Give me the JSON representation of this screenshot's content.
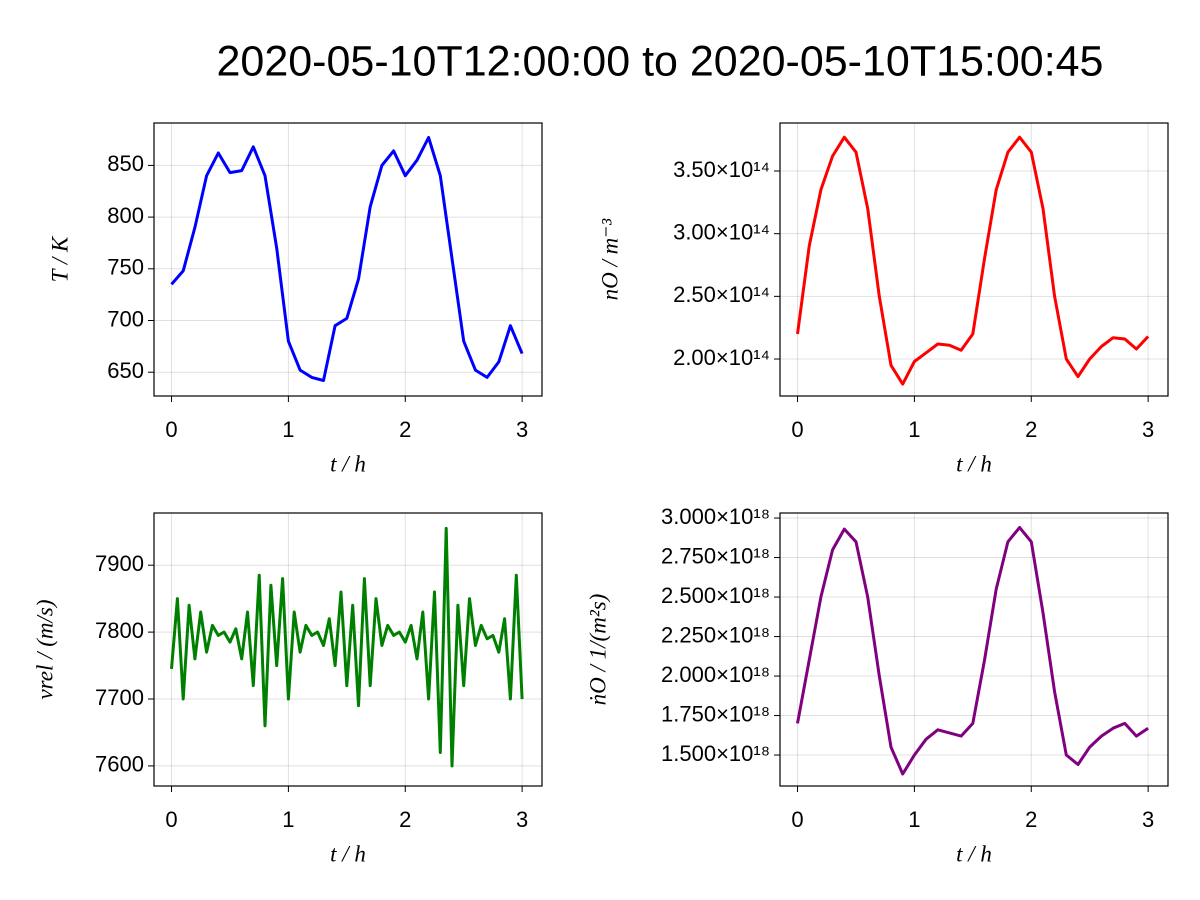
{
  "title": "2020-05-10T12:00:00 to 2020-05-10T15:00:45",
  "chart_data": [
    {
      "type": "line",
      "xlabel": "t / h",
      "ylabel": "T / K",
      "color": "#0000ff",
      "grid": true,
      "x": [
        0,
        0.1,
        0.2,
        0.3,
        0.4,
        0.5,
        0.6,
        0.7,
        0.8,
        0.9,
        1,
        1.1,
        1.2,
        1.3,
        1.4,
        1.5,
        1.6,
        1.7,
        1.8,
        1.9,
        2,
        2.1,
        2.2,
        2.3,
        2.4,
        2.5,
        2.6,
        2.7,
        2.8,
        2.9,
        3
      ],
      "values": [
        735,
        748,
        790,
        840,
        862,
        843,
        845,
        868,
        840,
        770,
        680,
        652,
        645,
        642,
        695,
        702,
        740,
        810,
        850,
        864,
        840,
        855,
        877,
        840,
        760,
        680,
        652,
        645,
        660,
        695,
        668
      ],
      "xlim": [
        -0.15,
        3.17
      ],
      "xticks": [
        0,
        1,
        2,
        3
      ],
      "ylim": [
        627,
        891
      ],
      "yticks": [
        650,
        700,
        750,
        800,
        850
      ]
    },
    {
      "type": "line",
      "xlabel": "t / h",
      "ylabel": "nO / m⁻³",
      "color": "#ff0000",
      "grid": true,
      "x": [
        0,
        0.1,
        0.2,
        0.3,
        0.4,
        0.5,
        0.6,
        0.7,
        0.8,
        0.9,
        1,
        1.1,
        1.2,
        1.3,
        1.4,
        1.5,
        1.6,
        1.7,
        1.8,
        1.9,
        2,
        2.1,
        2.2,
        2.3,
        2.4,
        2.5,
        2.6,
        2.7,
        2.8,
        2.9,
        3
      ],
      "values": [
        220000000000000.0,
        290000000000000.0,
        335000000000000.0,
        362000000000000.0,
        377000000000000.0,
        365000000000000.0,
        320000000000000.0,
        250000000000000.0,
        195000000000000.0,
        180000000000000.0,
        198000000000000.0,
        205000000000000.0,
        212000000000000.0,
        211000000000000.0,
        207000000000000.0,
        220000000000000.0,
        280000000000000.0,
        335000000000000.0,
        365000000000000.0,
        377000000000000.0,
        365000000000000.0,
        320000000000000.0,
        250000000000000.0,
        200000000000000.0,
        186000000000000.0,
        200000000000000.0,
        210000000000000.0,
        217000000000000.0,
        216000000000000.0,
        208000000000000.0,
        218000000000000.0
      ],
      "xlim": [
        -0.15,
        3.17
      ],
      "xticks": [
        0,
        1,
        2,
        3
      ],
      "ylim": [
        170500000000000.0,
        388300000000000.0
      ],
      "yticks": [
        {
          "value": 200000000000000.0,
          "label": "2.00×10¹⁴"
        },
        {
          "value": 250000000000000.0,
          "label": "2.50×10¹⁴"
        },
        {
          "value": 300000000000000.0,
          "label": "3.00×10¹⁴"
        },
        {
          "value": 350000000000000.0,
          "label": "3.50×10¹⁴"
        }
      ]
    },
    {
      "type": "line",
      "xlabel": "t / h",
      "ylabel": "vrel / (m/s)",
      "color": "#008000",
      "grid": true,
      "x": [
        0,
        0.05,
        0.1,
        0.15,
        0.2,
        0.25,
        0.3,
        0.35,
        0.4,
        0.45,
        0.5,
        0.55,
        0.6,
        0.65,
        0.7,
        0.75,
        0.8,
        0.85,
        0.9,
        0.95,
        1,
        1.05,
        1.1,
        1.15,
        1.2,
        1.25,
        1.3,
        1.35,
        1.4,
        1.45,
        1.5,
        1.55,
        1.6,
        1.65,
        1.7,
        1.75,
        1.8,
        1.85,
        1.9,
        1.95,
        2,
        2.05,
        2.1,
        2.15,
        2.2,
        2.25,
        2.3,
        2.35,
        2.4,
        2.45,
        2.5,
        2.55,
        2.6,
        2.65,
        2.7,
        2.75,
        2.8,
        2.85,
        2.9,
        2.95,
        3
      ],
      "values": [
        7745,
        7850,
        7700,
        7840,
        7760,
        7830,
        7770,
        7810,
        7795,
        7800,
        7785,
        7805,
        7760,
        7830,
        7720,
        7885,
        7660,
        7870,
        7750,
        7880,
        7700,
        7830,
        7770,
        7810,
        7795,
        7800,
        7780,
        7820,
        7750,
        7860,
        7720,
        7840,
        7690,
        7880,
        7720,
        7850,
        7780,
        7810,
        7795,
        7800,
        7785,
        7810,
        7760,
        7830,
        7700,
        7860,
        7620,
        7955,
        7600,
        7840,
        7720,
        7850,
        7780,
        7810,
        7790,
        7795,
        7770,
        7820,
        7700,
        7885,
        7700
      ],
      "xlim": [
        -0.15,
        3.17
      ],
      "xticks": [
        0,
        1,
        2,
        3
      ],
      "ylim": [
        7570,
        7978
      ],
      "yticks": [
        7600,
        7700,
        7800,
        7900
      ]
    },
    {
      "type": "line",
      "xlabel": "t / h",
      "ylabel": "ṅO / 1/(m²s)",
      "color": "#800080",
      "grid": true,
      "x": [
        0,
        0.1,
        0.2,
        0.3,
        0.4,
        0.5,
        0.6,
        0.7,
        0.8,
        0.9,
        1,
        1.1,
        1.2,
        1.3,
        1.4,
        1.5,
        1.6,
        1.7,
        1.8,
        1.9,
        2,
        2.1,
        2.2,
        2.3,
        2.4,
        2.5,
        2.6,
        2.7,
        2.8,
        2.9,
        3
      ],
      "values": [
        1.7e+18,
        2.1e+18,
        2.5e+18,
        2.8e+18,
        2.93e+18,
        2.85e+18,
        2.5e+18,
        2e+18,
        1.55e+18,
        1.38e+18,
        1.5e+18,
        1.6e+18,
        1.66e+18,
        1.64e+18,
        1.62e+18,
        1.7e+18,
        2.1e+18,
        2.55e+18,
        2.85e+18,
        2.94e+18,
        2.85e+18,
        2.4e+18,
        1.9e+18,
        1.5e+18,
        1.44e+18,
        1.55e+18,
        1.62e+18,
        1.67e+18,
        1.7e+18,
        1.62e+18,
        1.67e+18
      ],
      "xlim": [
        -0.15,
        3.17
      ],
      "xticks": [
        0,
        1,
        2,
        3
      ],
      "ylim": [
        1.304e+18,
        3.032e+18
      ],
      "yticks": [
        {
          "value": 1.5e+18,
          "label": "1.500×10¹⁸"
        },
        {
          "value": 1.75e+18,
          "label": "1.750×10¹⁸"
        },
        {
          "value": 2e+18,
          "label": "2.000×10¹⁸"
        },
        {
          "value": 2.25e+18,
          "label": "2.250×10¹⁸"
        },
        {
          "value": 2.5e+18,
          "label": "2.500×10¹⁸"
        },
        {
          "value": 2.75e+18,
          "label": "2.750×10¹⁸"
        },
        {
          "value": 3e+18,
          "label": "3.000×10¹⁸"
        }
      ]
    }
  ]
}
